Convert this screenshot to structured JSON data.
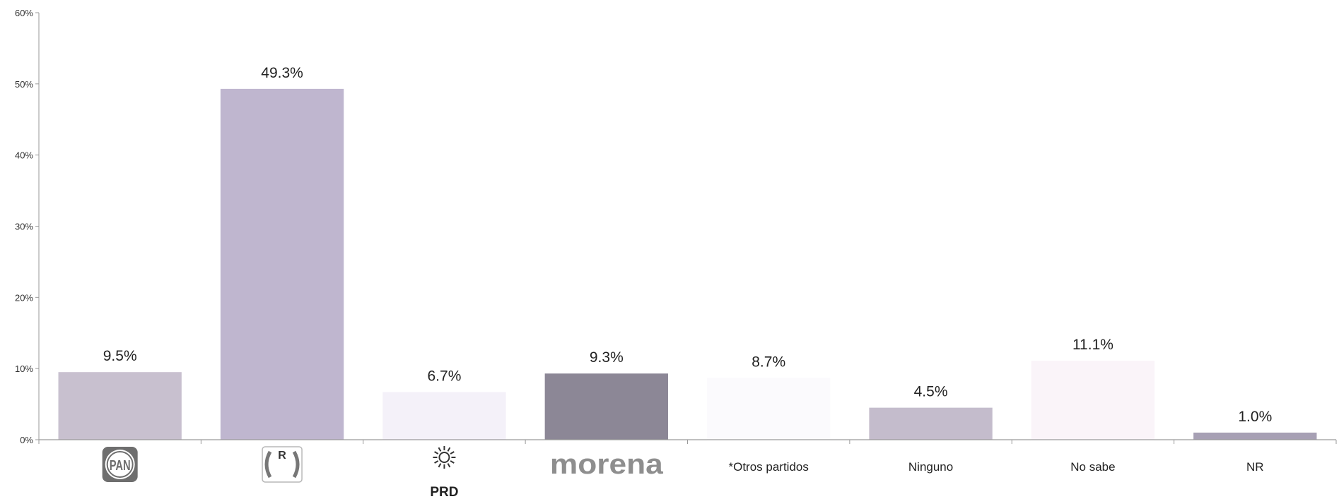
{
  "chart_data": {
    "type": "bar",
    "categories": [
      "PAN",
      "PRI",
      "PRD",
      "morena",
      "*Otros partidos",
      "Ninguno",
      "No sabe",
      "NR"
    ],
    "category_display": [
      "logo",
      "logo",
      "logo",
      "logo",
      "text",
      "text",
      "text",
      "text"
    ],
    "values": [
      9.5,
      49.3,
      6.7,
      9.3,
      8.7,
      4.5,
      11.1,
      1.0
    ],
    "data_labels": [
      "9.5%",
      "49.3%",
      "6.7%",
      "9.3%",
      "8.7%",
      "4.5%",
      "11.1%",
      "1.0%"
    ],
    "bar_colors": [
      "#c8c0cf",
      "#bfb6cf",
      "#f4f1f9",
      "#8c8796",
      "#fbfafd",
      "#c4bccc",
      "#faf4f9",
      "#a7a0b4"
    ],
    "ylim": [
      0,
      60
    ],
    "yticks": [
      0,
      10,
      20,
      30,
      40,
      50,
      60
    ],
    "ytick_labels": [
      "0%",
      "10%",
      "20%",
      "30%",
      "40%",
      "50%",
      "60%"
    ],
    "grid": false,
    "legend": "none",
    "title": "",
    "xlabel": "",
    "ylabel": ""
  }
}
